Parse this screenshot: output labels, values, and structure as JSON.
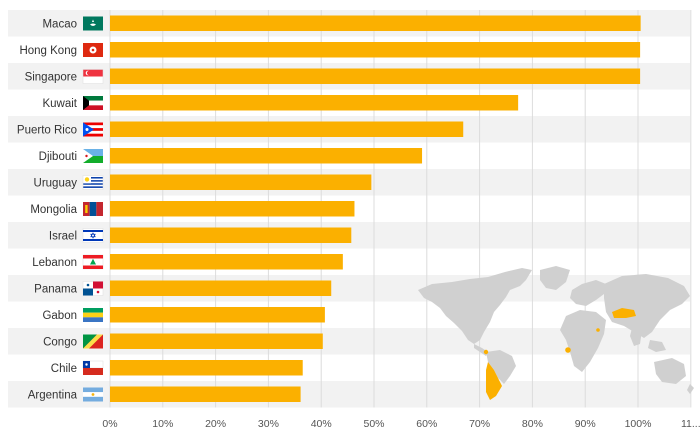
{
  "chart_data": {
    "type": "bar",
    "orientation": "horizontal",
    "categories": [
      "Macao",
      "Hong Kong",
      "Singapore",
      "Kuwait",
      "Puerto Rico",
      "Djibouti",
      "Uruguay",
      "Mongolia",
      "Israel",
      "Lebanon",
      "Panama",
      "Gabon",
      "Congo",
      "Chile",
      "Argentina"
    ],
    "values": [
      100.5,
      100.4,
      100.4,
      77.3,
      66.9,
      59.1,
      49.5,
      46.3,
      45.7,
      44.1,
      41.9,
      40.7,
      40.3,
      36.5,
      36.1
    ],
    "x_ticks": [
      "0%",
      "10%",
      "20%",
      "30%",
      "40%",
      "50%",
      "60%",
      "70%",
      "80%",
      "90%",
      "100%",
      "11..."
    ],
    "xlim": [
      0,
      110
    ],
    "grid": true,
    "bar_color": "#fbb000",
    "flag_icons": [
      "flag-macao-icon",
      "flag-hong-kong-icon",
      "flag-singapore-icon",
      "flag-kuwait-icon",
      "flag-puerto-rico-icon",
      "flag-djibouti-icon",
      "flag-uruguay-icon",
      "flag-mongolia-icon",
      "flag-israel-icon",
      "flag-lebanon-icon",
      "flag-panama-icon",
      "flag-gabon-icon",
      "flag-congo-icon",
      "flag-chile-icon",
      "flag-argentina-icon"
    ],
    "map": {
      "icon": "world-map-icon",
      "base_color": "#d0d0d0",
      "highlight_color": "#fbb000"
    }
  }
}
